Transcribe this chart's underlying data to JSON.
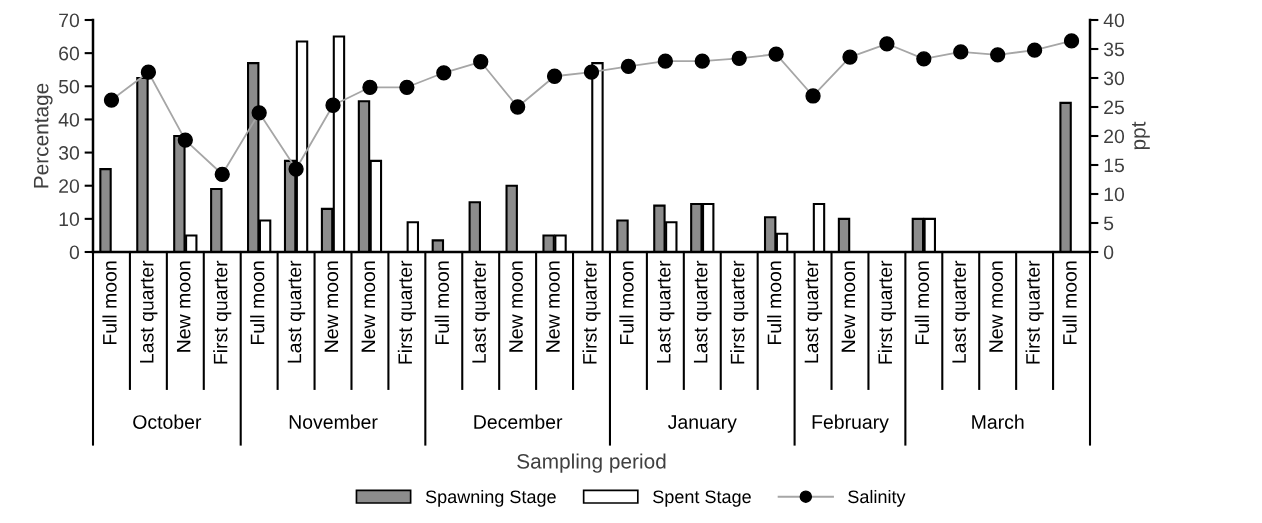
{
  "chart_data": {
    "type": "bar",
    "xlabel": "Sampling period",
    "ylabel": "Percentage",
    "y2label": "ppt",
    "categories": [
      "Full moon",
      "Last quarter",
      "New moon",
      "First quarter",
      "Full moon",
      "Last quarter",
      "New moon",
      "New moon",
      "First quarter",
      "Full moon",
      "Last quarter",
      "New moon",
      "New moon",
      "First quarter",
      "Full moon",
      "Last quarter",
      "Last quarter",
      "First quarter",
      "Full moon",
      "Last quarter",
      "New moon",
      "First quarter",
      "Full moon",
      "Last quarter",
      "New moon",
      "First quarter",
      "Full moon"
    ],
    "series": [
      {
        "name": "Spawning Stage",
        "color": "#8c8c8c",
        "values": [
          25,
          52.5,
          35,
          19,
          57,
          27.5,
          13,
          45.5,
          0,
          3.5,
          15,
          20,
          5,
          0,
          9.5,
          14,
          14.5,
          0,
          10.5,
          0,
          10,
          0,
          10,
          0,
          0,
          0,
          45
        ]
      },
      {
        "name": "Spent Stage",
        "color": "#ffffff",
        "values": [
          0,
          0,
          5,
          0,
          9.5,
          63.5,
          65,
          27.5,
          9,
          0,
          0,
          0,
          5,
          57,
          0,
          9,
          14.5,
          0,
          5.5,
          14.5,
          0,
          0,
          10,
          0,
          0,
          0,
          0
        ]
      },
      {
        "name": "Salinity",
        "type": "line",
        "axis": "y2",
        "color": "#000000",
        "marker": "circle",
        "values": [
          26.2,
          31,
          19.3,
          13.4,
          24,
          14.3,
          25.3,
          28.4,
          28.4,
          30.9,
          32.8,
          25,
          30.3,
          31,
          32,
          32.9,
          32.9,
          33.4,
          34.1,
          26.9,
          33.6,
          35.9,
          33.3,
          34.5,
          34,
          34.8,
          36.4
        ]
      }
    ],
    "ylim": [
      0,
      70
    ],
    "yticks": [
      0,
      10,
      20,
      30,
      40,
      50,
      60,
      70
    ],
    "y2lim": [
      0,
      40
    ],
    "y2ticks": [
      0,
      5,
      10,
      15,
      20,
      25,
      30,
      35,
      40
    ],
    "grid": false,
    "legend": "bottom",
    "annotations": [
      "October",
      "November",
      "December",
      "January",
      "February",
      "March"
    ]
  }
}
